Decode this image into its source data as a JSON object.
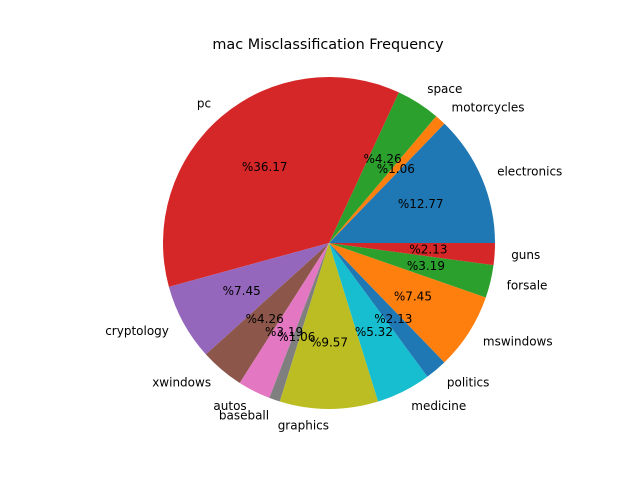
{
  "chart_data": {
    "type": "pie",
    "title": "mac Misclassification Frequency",
    "start_angle_deg": 0,
    "direction": "counterclockwise",
    "slices": [
      {
        "label": "electronics",
        "percent": 12.77,
        "pct_text": "%12.77",
        "color": "#1f77b4"
      },
      {
        "label": "motorcycles",
        "percent": 1.06,
        "pct_text": "%1.06",
        "color": "#ff7f0e"
      },
      {
        "label": "space",
        "percent": 4.26,
        "pct_text": "%4.26",
        "color": "#2ca02c"
      },
      {
        "label": "pc",
        "percent": 36.17,
        "pct_text": "%36.17",
        "color": "#d62728"
      },
      {
        "label": "cryptology",
        "percent": 7.45,
        "pct_text": "%7.45",
        "color": "#9467bd"
      },
      {
        "label": "xwindows",
        "percent": 4.26,
        "pct_text": "%4.26",
        "color": "#8c564b"
      },
      {
        "label": "autos",
        "percent": 3.19,
        "pct_text": "%3.19",
        "color": "#e377c2"
      },
      {
        "label": "baseball",
        "percent": 1.06,
        "pct_text": "%1.06",
        "color": "#7f7f7f"
      },
      {
        "label": "graphics",
        "percent": 9.57,
        "pct_text": "%9.57",
        "color": "#bcbd22"
      },
      {
        "label": "medicine",
        "percent": 5.32,
        "pct_text": "%5.32",
        "color": "#17becf"
      },
      {
        "label": "politics",
        "percent": 2.13,
        "pct_text": "%2.13",
        "color": "#1f77b4"
      },
      {
        "label": "mswindows",
        "percent": 7.45,
        "pct_text": "%7.45",
        "color": "#ff7f0e"
      },
      {
        "label": "forsale",
        "percent": 3.19,
        "pct_text": "%3.19",
        "color": "#2ca02c"
      },
      {
        "label": "guns",
        "percent": 2.13,
        "pct_text": "%2.13",
        "color": "#d62728"
      }
    ]
  }
}
